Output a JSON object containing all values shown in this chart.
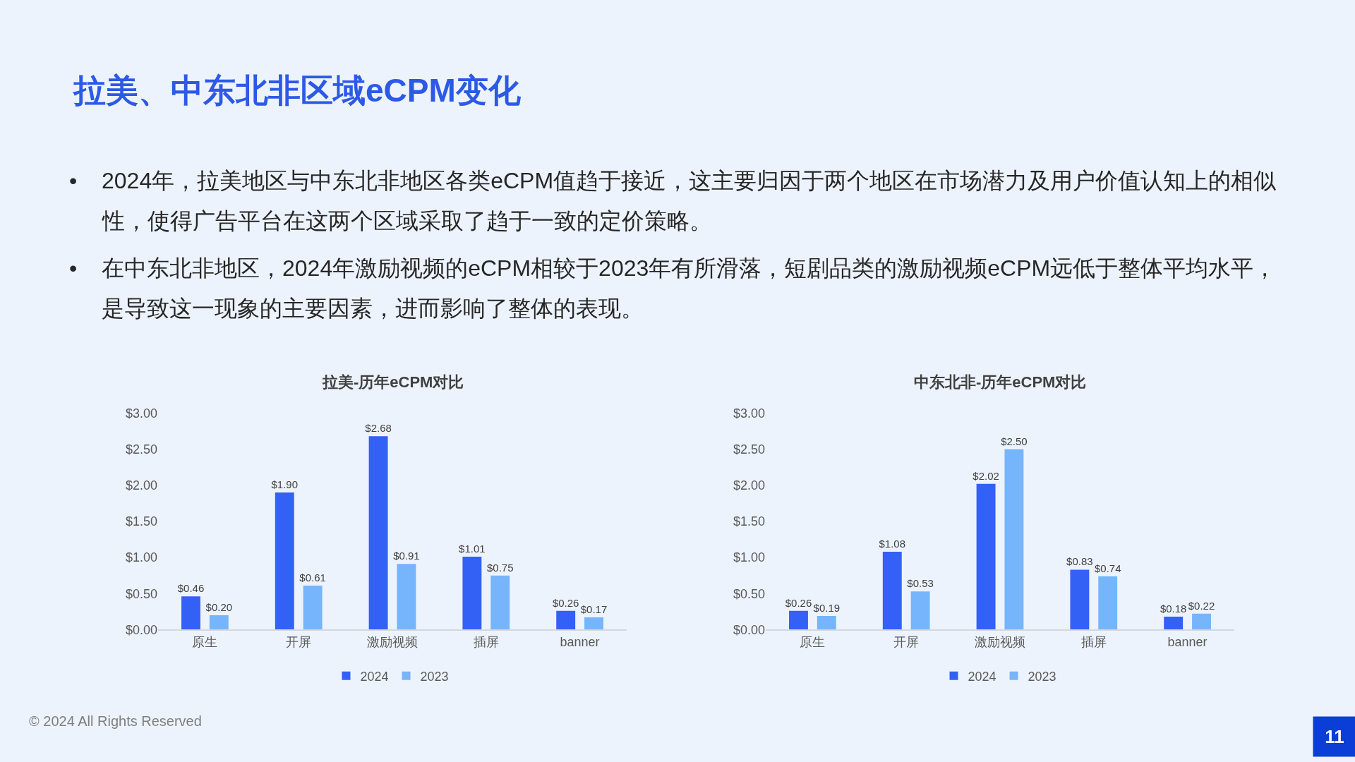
{
  "chart_data": [
    {
      "type": "other",
      "title": "拉美、中东北非区域eCPM变化",
      "annotations": [
        "• 2024年，拉美地区与中东北非地区各类eCPM值趋于接近，这主要归因于两个地区在市场潜力及用户价值认知上的相似性，使得广告平台在这两个区域采取了趋于一致的定价策略。",
        "• 在中东北非地区，2024年激励视频的eCPM相较于2023年有所滑落，短剧品类的激励视频eCPM远低于整体平均水平，是导致这一现象的主要因素，进而影响了整体的表现。",
        "© 2024 All Rights Reserved",
        "11"
      ]
    },
    {
      "type": "bar",
      "title": "拉美-历年eCPM对比",
      "categories": [
        "原生",
        "开屏",
        "激励视频",
        "插屏",
        "banner"
      ],
      "series": [
        {
          "name": "2024",
          "color": "#3361f6",
          "values": [
            0.46,
            1.9,
            2.68,
            1.01,
            0.26
          ],
          "value_labels": [
            "$0.46",
            "$1.90",
            "$2.68",
            "$1.01",
            "$0.26"
          ]
        },
        {
          "name": "2023",
          "color": "#76b5fb",
          "values": [
            0.2,
            0.61,
            0.91,
            0.75,
            0.17
          ],
          "value_labels": [
            "$0.20",
            "$0.61",
            "$0.91",
            "$0.75",
            "$0.17"
          ]
        }
      ],
      "ylim": [
        0,
        3
      ],
      "yticks": [
        {
          "value": 0,
          "label": "$0.00"
        },
        {
          "value": 0.5,
          "label": "$0.50"
        },
        {
          "value": 1,
          "label": "$1.00"
        },
        {
          "value": 1.5,
          "label": "$1.50"
        },
        {
          "value": 2,
          "label": "$2.00"
        },
        {
          "value": 2.5,
          "label": "$2.50"
        },
        {
          "value": 3,
          "label": "$3.00"
        }
      ],
      "grid": false,
      "legend": "bottom"
    },
    {
      "type": "bar",
      "title": "中东北非-历年eCPM对比",
      "categories": [
        "原生",
        "开屏",
        "激励视频",
        "插屏",
        "banner"
      ],
      "series": [
        {
          "name": "2024",
          "color": "#3361f6",
          "values": [
            0.26,
            1.08,
            2.02,
            0.83,
            0.18
          ],
          "value_labels": [
            "$0.26",
            "$1.08",
            "$2.02",
            "$0.83",
            "$0.18"
          ]
        },
        {
          "name": "2023",
          "color": "#76b5fb",
          "values": [
            0.19,
            0.53,
            2.5,
            0.74,
            0.22
          ],
          "value_labels": [
            "$0.19",
            "$0.53",
            "$2.50",
            "$0.74",
            "$0.22"
          ]
        }
      ],
      "ylim": [
        0,
        3
      ],
      "yticks": [
        {
          "value": 0,
          "label": "$0.00"
        },
        {
          "value": 0.5,
          "label": "$0.50"
        },
        {
          "value": 1,
          "label": "$1.00"
        },
        {
          "value": 1.5,
          "label": "$1.50"
        },
        {
          "value": 2,
          "label": "$2.00"
        },
        {
          "value": 2.5,
          "label": "$2.50"
        },
        {
          "value": 3,
          "label": "$3.00"
        }
      ],
      "grid": false,
      "legend": "bottom"
    }
  ]
}
